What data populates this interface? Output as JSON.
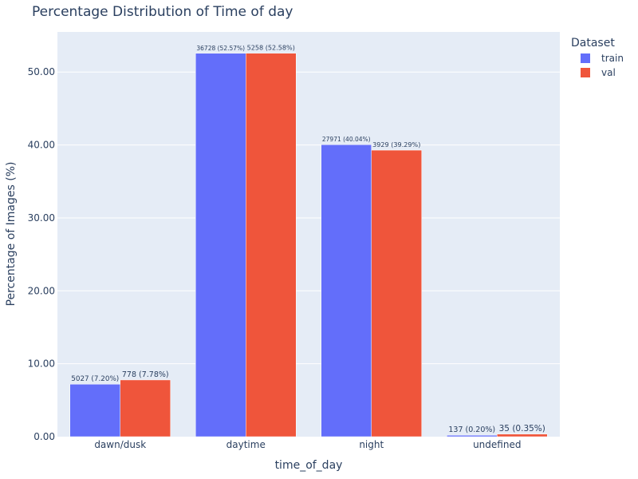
{
  "chart_data": {
    "type": "bar",
    "title": "Percentage Distribution of Time of day",
    "xlabel": "time_of_day",
    "ylabel": "Percentage of Images (%)",
    "categories": [
      "dawn/dusk",
      "daytime",
      "night",
      "undefined"
    ],
    "ylim": [
      0,
      55.5
    ],
    "yticks": [
      0,
      10,
      20,
      30,
      40,
      50
    ],
    "ytick_labels": [
      "0.00",
      "10.00",
      "20.00",
      "30.00",
      "40.00",
      "50.00"
    ],
    "grid": true,
    "legend": {
      "title": "Dataset",
      "placement": "top-right"
    },
    "series": [
      {
        "name": "train",
        "color": "#636efa",
        "values": [
          7.2,
          52.57,
          40.04,
          0.2
        ],
        "labels": [
          "5027 (7.20%)",
          "36728 (52.57%)",
          "27971 (40.04%)",
          "137 (0.20%)"
        ]
      },
      {
        "name": "val",
        "color": "#ef553b",
        "values": [
          7.78,
          52.58,
          39.29,
          0.35
        ],
        "labels": [
          "778 (7.78%)",
          "5258 (52.58%)",
          "3929 (39.29%)",
          "35 (0.35%)"
        ]
      }
    ]
  }
}
